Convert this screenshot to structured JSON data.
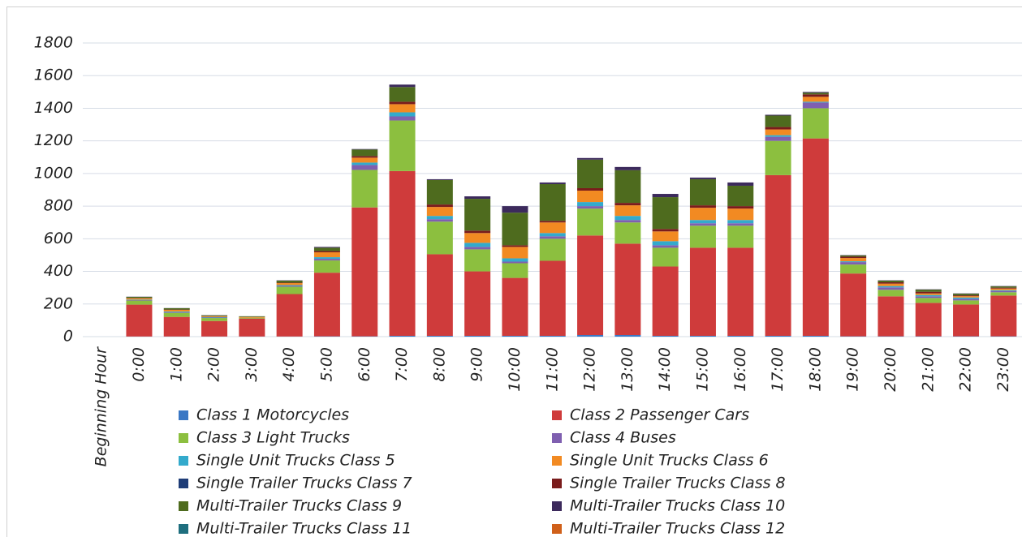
{
  "chart_data": {
    "type": "stacked_bar",
    "categories": [
      "Beginning Hour",
      "0:00",
      "1:00",
      "2:00",
      "3:00",
      "4:00",
      "5:00",
      "6:00",
      "7:00",
      "8:00",
      "9:00",
      "10:00",
      "11:00",
      "12:00",
      "13:00",
      "14:00",
      "15:00",
      "16:00",
      "17:00",
      "18:00",
      "19:00",
      "20:00",
      "21:00",
      "22:00",
      "23:00"
    ],
    "ylim": [
      0,
      1800
    ],
    "yticks": [
      0,
      200,
      400,
      600,
      800,
      1000,
      1200,
      1400,
      1600,
      1800
    ],
    "grid": true,
    "series": [
      {
        "name": "Class 1 Motorcycles",
        "color": "#3a77c4",
        "values": [
          null,
          1,
          1,
          1,
          1,
          1,
          2,
          2,
          5,
          5,
          5,
          5,
          5,
          10,
          10,
          5,
          5,
          5,
          5,
          5,
          2,
          2,
          2,
          2,
          2
        ]
      },
      {
        "name": "Class 2  Passenger Cars",
        "color": "#cf3b3b",
        "values": [
          null,
          195,
          120,
          95,
          110,
          260,
          390,
          790,
          1010,
          500,
          395,
          355,
          460,
          610,
          560,
          425,
          540,
          540,
          985,
          1210,
          385,
          245,
          205,
          195,
          250
        ]
      },
      {
        "name": "Class 3 Light Trucks",
        "color": "#8cbf3f",
        "values": [
          null,
          25,
          25,
          18,
          5,
          45,
          75,
          230,
          310,
          200,
          135,
          90,
          135,
          165,
          130,
          115,
          135,
          135,
          210,
          185,
          55,
          40,
          30,
          25,
          20
        ]
      },
      {
        "name": "Class 4 Buses",
        "color": "#7f5fb0",
        "values": [
          null,
          3,
          4,
          3,
          0,
          5,
          10,
          30,
          25,
          15,
          15,
          10,
          15,
          15,
          15,
          15,
          15,
          15,
          25,
          35,
          15,
          15,
          10,
          10,
          8
        ]
      },
      {
        "name": "Single Unit Trucks Class 5",
        "color": "#33aacc",
        "values": [
          null,
          3,
          4,
          3,
          0,
          5,
          10,
          15,
          25,
          20,
          25,
          20,
          20,
          25,
          25,
          25,
          20,
          20,
          10,
          5,
          5,
          8,
          8,
          8,
          5
        ]
      },
      {
        "name": "Single Unit Trucks Class 6",
        "color": "#f28a22",
        "values": [
          null,
          8,
          10,
          5,
          4,
          12,
          30,
          30,
          50,
          55,
          60,
          70,
          65,
          70,
          65,
          60,
          75,
          70,
          35,
          30,
          20,
          15,
          10,
          8,
          10
        ]
      },
      {
        "name": "Single Trailer Trucks Class 7",
        "color": "#1f3d78",
        "values": [
          null,
          0,
          0,
          0,
          0,
          0,
          0,
          0,
          0,
          0,
          0,
          0,
          0,
          0,
          0,
          0,
          0,
          0,
          0,
          0,
          0,
          0,
          0,
          0,
          0
        ]
      },
      {
        "name": "Single Trailer Trucks Class 8",
        "color": "#7a1c1c",
        "values": [
          null,
          2,
          2,
          1,
          1,
          3,
          8,
          10,
          15,
          15,
          15,
          10,
          10,
          15,
          15,
          15,
          15,
          15,
          15,
          15,
          8,
          8,
          10,
          5,
          5
        ]
      },
      {
        "name": "Multi-Trailer Trucks Class 9",
        "color": "#4e6b1e",
        "values": [
          null,
          7,
          8,
          5,
          4,
          12,
          20,
          40,
          90,
          150,
          195,
          200,
          225,
          175,
          200,
          195,
          160,
          125,
          70,
          10,
          8,
          10,
          13,
          10,
          8
        ]
      },
      {
        "name": "Multi-Trailer Trucks Class 10",
        "color": "#3c2a5c",
        "values": [
          null,
          1,
          1,
          1,
          0,
          2,
          5,
          3,
          15,
          5,
          15,
          40,
          10,
          10,
          20,
          20,
          10,
          20,
          5,
          5,
          2,
          2,
          2,
          2,
          2
        ]
      },
      {
        "name": "Multi-Trailer Trucks Class 11",
        "color": "#1e6e7e",
        "values": [
          null,
          0,
          0,
          0,
          0,
          0,
          0,
          0,
          0,
          0,
          0,
          0,
          0,
          0,
          0,
          0,
          0,
          0,
          0,
          0,
          0,
          0,
          0,
          0,
          0
        ]
      },
      {
        "name": "Multi-Trailer Trucks Class 12",
        "color": "#d0601a",
        "values": [
          null,
          0,
          0,
          0,
          0,
          0,
          0,
          0,
          0,
          0,
          0,
          0,
          0,
          0,
          0,
          0,
          0,
          0,
          0,
          0,
          0,
          0,
          0,
          0,
          0
        ]
      }
    ]
  }
}
